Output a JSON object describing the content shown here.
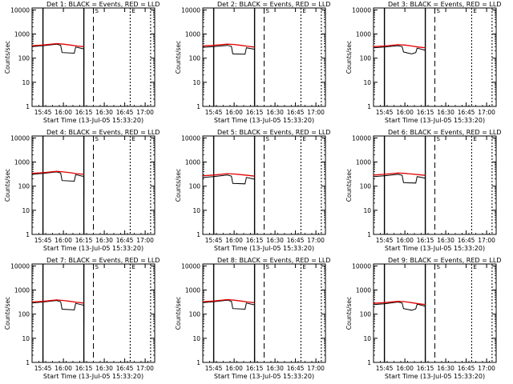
{
  "figure": {
    "title_prefix": "Det",
    "title_suffix": "BLACK = Events, RED = LLD",
    "xlabel": "Start Time (13-Jul-05 15:33:20)",
    "ylabel": "Counts/sec"
  },
  "colors": {
    "events": "#000000",
    "lld": "#e00000",
    "axes": "#000000",
    "background": "#ffffff"
  },
  "chart_data": [
    {
      "type": "line",
      "detector": "1",
      "panel": "Det 1:",
      "xlim": [
        "15:37",
        "17:07"
      ],
      "ylim": [
        1,
        12000
      ],
      "yscale": "log",
      "xticks": [
        "15:45",
        "16:00",
        "16:15",
        "16:30",
        "16:45",
        "17:00"
      ],
      "yticks": [
        "1",
        "10",
        "100",
        "1000",
        "10000"
      ],
      "markers": [
        {
          "time": "15:45",
          "style": "solid"
        },
        {
          "time": "16:15",
          "style": "solid"
        },
        {
          "time": "16:22",
          "style": "dashed",
          "label": "S"
        },
        {
          "time": "16:49",
          "style": "dotted",
          "label": "E"
        },
        {
          "time": "17:04",
          "style": "dotted"
        }
      ],
      "series": [
        {
          "key": "events",
          "x": [
            "15:37",
            "15:45",
            "15:55",
            "15:58",
            "15:59",
            "16:08",
            "16:09",
            "16:14",
            "16:15",
            "16:15"
          ],
          "y": [
            300,
            330,
            380,
            340,
            170,
            160,
            290,
            250,
            240,
            40
          ]
        },
        {
          "key": "lld",
          "x": [
            "15:37",
            "15:45",
            "15:55",
            "16:00",
            "16:05",
            "16:10",
            "16:15"
          ],
          "y": [
            330,
            350,
            400,
            380,
            350,
            320,
            300
          ]
        }
      ]
    },
    {
      "type": "line",
      "detector": "2",
      "panel": "Det 2:",
      "xlim": [
        "15:37",
        "17:07"
      ],
      "ylim": [
        1,
        12000
      ],
      "yscale": "log",
      "xticks": [
        "15:45",
        "16:00",
        "16:15",
        "16:30",
        "16:45",
        "17:00"
      ],
      "yticks": [
        "1",
        "10",
        "100",
        "1000",
        "10000"
      ],
      "markers": [
        {
          "time": "15:45",
          "style": "solid"
        },
        {
          "time": "16:15",
          "style": "solid"
        },
        {
          "time": "16:22",
          "style": "dashed",
          "label": "S"
        },
        {
          "time": "16:49",
          "style": "dotted",
          "label": "E"
        },
        {
          "time": "17:04",
          "style": "dotted"
        }
      ],
      "series": [
        {
          "key": "events",
          "x": [
            "15:37",
            "15:45",
            "15:55",
            "15:58",
            "15:59",
            "16:08",
            "16:09",
            "16:14",
            "16:15"
          ],
          "y": [
            280,
            300,
            340,
            310,
            150,
            145,
            270,
            240,
            230
          ]
        },
        {
          "key": "lld",
          "x": [
            "15:37",
            "15:45",
            "15:55",
            "16:00",
            "16:05",
            "16:10",
            "16:15"
          ],
          "y": [
            320,
            340,
            380,
            370,
            340,
            310,
            290
          ]
        }
      ]
    },
    {
      "type": "line",
      "detector": "3",
      "panel": "Det 3:",
      "xlim": [
        "15:37",
        "17:07"
      ],
      "ylim": [
        1,
        12000
      ],
      "yscale": "log",
      "xticks": [
        "15:45",
        "16:00",
        "16:15",
        "16:30",
        "16:45",
        "17:00"
      ],
      "yticks": [
        "1",
        "10",
        "100",
        "1000",
        "10000"
      ],
      "markers": [
        {
          "time": "15:45",
          "style": "solid"
        },
        {
          "time": "16:15",
          "style": "solid"
        },
        {
          "time": "16:22",
          "style": "dashed",
          "label": "S"
        },
        {
          "time": "16:49",
          "style": "dotted",
          "label": "E"
        },
        {
          "time": "17:04",
          "style": "dotted"
        }
      ],
      "series": [
        {
          "key": "events",
          "x": [
            "15:37",
            "15:45",
            "15:55",
            "15:58",
            "15:59",
            "16:05",
            "16:08",
            "16:09",
            "16:14",
            "16:15"
          ],
          "y": [
            270,
            290,
            330,
            300,
            180,
            150,
            170,
            260,
            220,
            210
          ]
        },
        {
          "key": "lld",
          "x": [
            "15:37",
            "15:45",
            "15:55",
            "16:00",
            "16:05",
            "16:10",
            "16:15"
          ],
          "y": [
            300,
            320,
            360,
            350,
            320,
            290,
            270
          ]
        }
      ]
    },
    {
      "type": "line",
      "detector": "4",
      "panel": "Det 4:",
      "xlim": [
        "15:37",
        "17:07"
      ],
      "ylim": [
        1,
        12000
      ],
      "yscale": "log",
      "xticks": [
        "15:45",
        "16:00",
        "16:15",
        "16:30",
        "16:45",
        "17:00"
      ],
      "yticks": [
        "1",
        "10",
        "100",
        "1000",
        "10000"
      ],
      "markers": [
        {
          "time": "15:45",
          "style": "solid"
        },
        {
          "time": "16:15",
          "style": "solid"
        },
        {
          "time": "16:22",
          "style": "dashed",
          "label": "S"
        },
        {
          "time": "16:49",
          "style": "dotted",
          "label": "E"
        },
        {
          "time": "17:04",
          "style": "dotted"
        }
      ],
      "series": [
        {
          "key": "events",
          "x": [
            "15:37",
            "15:45",
            "15:55",
            "15:58",
            "15:59",
            "16:08",
            "16:09",
            "16:14",
            "16:15",
            "16:15"
          ],
          "y": [
            310,
            340,
            390,
            350,
            170,
            160,
            300,
            260,
            250,
            40
          ]
        },
        {
          "key": "lld",
          "x": [
            "15:37",
            "15:45",
            "15:55",
            "16:00",
            "16:05",
            "16:10",
            "16:15"
          ],
          "y": [
            340,
            360,
            410,
            390,
            360,
            330,
            310
          ]
        }
      ]
    },
    {
      "type": "line",
      "detector": "5",
      "panel": "Det 5:",
      "xlim": [
        "15:37",
        "17:07"
      ],
      "ylim": [
        1,
        12000
      ],
      "yscale": "log",
      "xticks": [
        "15:45",
        "16:00",
        "16:15",
        "16:30",
        "16:45",
        "17:00"
      ],
      "yticks": [
        "1",
        "10",
        "100",
        "1000",
        "10000"
      ],
      "markers": [
        {
          "time": "15:45",
          "style": "solid"
        },
        {
          "time": "16:15",
          "style": "solid"
        },
        {
          "time": "16:22",
          "style": "dashed",
          "label": "S"
        },
        {
          "time": "16:49",
          "style": "dotted",
          "label": "E"
        },
        {
          "time": "17:04",
          "style": "dotted"
        }
      ],
      "series": [
        {
          "key": "events",
          "x": [
            "15:37",
            "15:45",
            "15:55",
            "15:58",
            "15:59",
            "16:08",
            "16:09",
            "16:14",
            "16:15"
          ],
          "y": [
            230,
            250,
            290,
            260,
            130,
            125,
            230,
            200,
            190
          ]
        },
        {
          "key": "lld",
          "x": [
            "15:37",
            "15:45",
            "15:55",
            "16:00",
            "16:05",
            "16:10",
            "16:15"
          ],
          "y": [
            270,
            290,
            330,
            320,
            300,
            280,
            260
          ]
        }
      ]
    },
    {
      "type": "line",
      "detector": "6",
      "panel": "Det 6:",
      "xlim": [
        "15:37",
        "17:07"
      ],
      "ylim": [
        1,
        12000
      ],
      "yscale": "log",
      "xticks": [
        "15:45",
        "16:00",
        "16:15",
        "16:30",
        "16:45",
        "17:00"
      ],
      "yticks": [
        "1",
        "10",
        "100",
        "1000",
        "10000"
      ],
      "markers": [
        {
          "time": "15:45",
          "style": "solid"
        },
        {
          "time": "16:15",
          "style": "solid"
        },
        {
          "time": "16:22",
          "style": "dashed",
          "label": "S"
        },
        {
          "time": "16:49",
          "style": "dotted",
          "label": "E"
        },
        {
          "time": "17:04",
          "style": "dotted"
        }
      ],
      "series": [
        {
          "key": "events",
          "x": [
            "15:37",
            "15:45",
            "15:55",
            "15:58",
            "15:59",
            "16:08",
            "16:09",
            "16:14",
            "16:15"
          ],
          "y": [
            250,
            270,
            310,
            280,
            140,
            135,
            250,
            220,
            210
          ]
        },
        {
          "key": "lld",
          "x": [
            "15:37",
            "15:45",
            "15:55",
            "16:00",
            "16:05",
            "16:10",
            "16:15"
          ],
          "y": [
            290,
            310,
            350,
            340,
            320,
            300,
            280
          ]
        }
      ]
    },
    {
      "type": "line",
      "detector": "7",
      "panel": "Det 7:",
      "xlim": [
        "15:37",
        "17:07"
      ],
      "ylim": [
        1,
        12000
      ],
      "yscale": "log",
      "xticks": [
        "15:45",
        "16:00",
        "16:15",
        "16:30",
        "16:45",
        "17:00"
      ],
      "yticks": [
        "1",
        "10",
        "100",
        "1000",
        "10000"
      ],
      "markers": [
        {
          "time": "15:45",
          "style": "solid"
        },
        {
          "time": "16:15",
          "style": "solid"
        },
        {
          "time": "16:22",
          "style": "dashed",
          "label": "S"
        },
        {
          "time": "16:49",
          "style": "dotted",
          "label": "E"
        },
        {
          "time": "17:04",
          "style": "dotted"
        }
      ],
      "series": [
        {
          "key": "events",
          "x": [
            "15:37",
            "15:45",
            "15:55",
            "15:58",
            "15:59",
            "16:08",
            "16:09",
            "16:14",
            "16:15",
            "16:15"
          ],
          "y": [
            290,
            320,
            370,
            330,
            160,
            150,
            280,
            240,
            230,
            40
          ]
        },
        {
          "key": "lld",
          "x": [
            "15:37",
            "15:45",
            "15:55",
            "16:00",
            "16:05",
            "16:10",
            "16:15"
          ],
          "y": [
            320,
            340,
            390,
            370,
            340,
            310,
            290
          ]
        }
      ]
    },
    {
      "type": "line",
      "detector": "8",
      "panel": "Det 8:",
      "xlim": [
        "15:37",
        "17:07"
      ],
      "ylim": [
        1,
        12000
      ],
      "yscale": "log",
      "xticks": [
        "15:45",
        "16:00",
        "16:15",
        "16:30",
        "16:45",
        "17:00"
      ],
      "yticks": [
        "1",
        "10",
        "100",
        "1000",
        "10000"
      ],
      "markers": [
        {
          "time": "15:45",
          "style": "solid"
        },
        {
          "time": "16:15",
          "style": "solid"
        },
        {
          "time": "16:22",
          "style": "dashed",
          "label": "S"
        },
        {
          "time": "16:49",
          "style": "dotted",
          "label": "E"
        },
        {
          "time": "17:04",
          "style": "dotted"
        }
      ],
      "series": [
        {
          "key": "events",
          "x": [
            "15:37",
            "15:45",
            "15:55",
            "15:58",
            "15:59",
            "16:08",
            "16:09",
            "16:14",
            "16:15"
          ],
          "y": [
            300,
            330,
            380,
            340,
            170,
            160,
            290,
            250,
            240
          ]
        },
        {
          "key": "lld",
          "x": [
            "15:37",
            "15:45",
            "15:55",
            "16:00",
            "16:05",
            "16:10",
            "16:15"
          ],
          "y": [
            330,
            350,
            400,
            380,
            350,
            320,
            300
          ]
        }
      ]
    },
    {
      "type": "line",
      "detector": "9",
      "panel": "Det 9:",
      "xlim": [
        "15:37",
        "17:07"
      ],
      "ylim": [
        1,
        12000
      ],
      "yscale": "log",
      "xticks": [
        "15:45",
        "16:00",
        "16:15",
        "16:30",
        "16:45",
        "17:00"
      ],
      "yticks": [
        "1",
        "10",
        "100",
        "1000",
        "10000"
      ],
      "markers": [
        {
          "time": "15:45",
          "style": "solid"
        },
        {
          "time": "16:15",
          "style": "solid"
        },
        {
          "time": "16:22",
          "style": "dashed",
          "label": "S"
        },
        {
          "time": "16:49",
          "style": "dotted",
          "label": "E"
        },
        {
          "time": "17:04",
          "style": "dotted"
        }
      ],
      "series": [
        {
          "key": "events",
          "x": [
            "15:37",
            "15:45",
            "15:55",
            "15:58",
            "15:59",
            "16:05",
            "16:08",
            "16:09",
            "16:14",
            "16:15"
          ],
          "y": [
            250,
            270,
            320,
            290,
            170,
            145,
            165,
            260,
            220,
            210
          ]
        },
        {
          "key": "lld",
          "x": [
            "15:37",
            "15:45",
            "15:55",
            "16:00",
            "16:05",
            "16:10",
            "16:15"
          ],
          "y": [
            280,
            300,
            340,
            330,
            300,
            270,
            250
          ]
        }
      ]
    }
  ]
}
